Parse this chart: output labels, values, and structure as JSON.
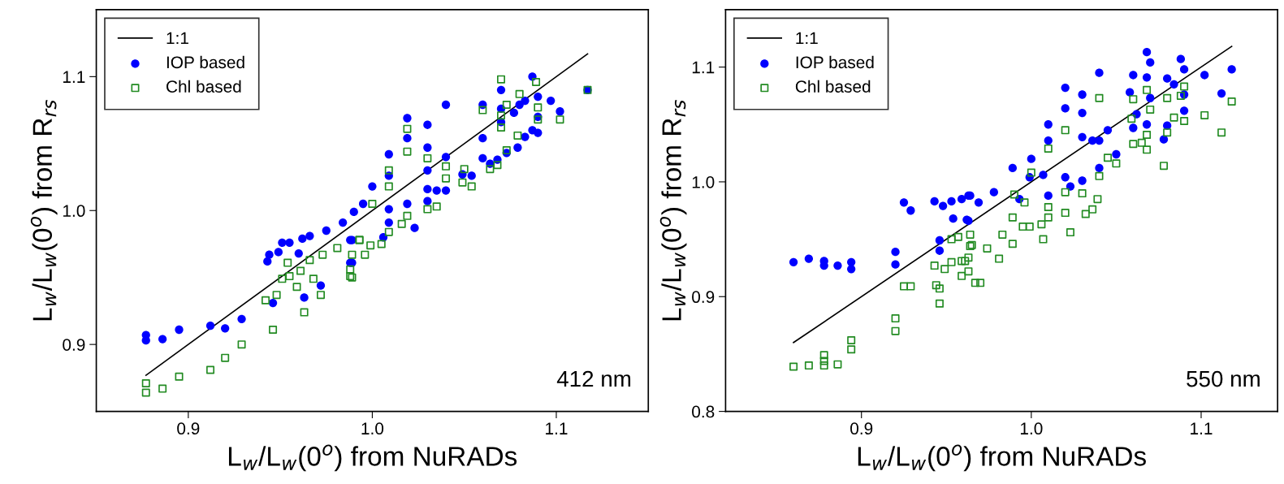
{
  "chart_data": [
    {
      "type": "scatter",
      "xlabel": "L$_{w}$/L$_{w}$(0$^{o}$) from NuRADs",
      "ylabel": "L$_{w}$/L$_{w}$(0$^{o}$) from R$_{rs}$",
      "annotations": [
        "412 nm"
      ],
      "xlim": [
        0.85,
        1.15
      ],
      "ylim": [
        0.85,
        1.15
      ],
      "xticks": [
        {
          "value": 0.9,
          "label": "0.9"
        },
        {
          "value": 1,
          "label": "1.0"
        },
        {
          "value": 1.1,
          "label": "1.1"
        }
      ],
      "yticks": [
        {
          "value": 0.9,
          "label": "0.9"
        },
        {
          "value": 1,
          "label": "1.0"
        },
        {
          "value": 1.1,
          "label": "1.1"
        }
      ],
      "grid": false,
      "legend": "top left",
      "series": [
        {
          "name": "1:1",
          "type": "line",
          "color": "#000000",
          "marker": "none",
          "x": [
            0.877,
            1.117
          ],
          "values": [
            0.877,
            1.117
          ]
        },
        {
          "name": "IOP based",
          "color": "#0000ff",
          "marker": "circle",
          "x": [
            0.877,
            0.877,
            0.886,
            0.895,
            0.912,
            0.92,
            0.929,
            0.943,
            0.944,
            0.949,
            0.951,
            0.955,
            0.96,
            0.962,
            0.966,
            0.975,
            0.984,
            0.99,
            0.988,
            0.989,
            0.963,
            0.972,
            0.946,
            0.989,
            0.988,
            1.0,
            0.995,
            1.009,
            1.009,
            1.009,
            1.009,
            1.006,
            1.019,
            1.019,
            1.019,
            1.023,
            1.03,
            1.03,
            1.03,
            1.03,
            1.03,
            1.035,
            1.04,
            1.04,
            1.04,
            1.049,
            1.054,
            1.06,
            1.06,
            1.06,
            1.064,
            1.068,
            1.07,
            1.07,
            1.07,
            1.073,
            1.077,
            1.079,
            1.08,
            1.083,
            1.083,
            1.087,
            1.087,
            1.09,
            1.09,
            1.09,
            1.097,
            1.102,
            1.117
          ],
          "values": [
            0.907,
            0.903,
            0.904,
            0.911,
            0.914,
            0.912,
            0.919,
            0.962,
            0.967,
            0.969,
            0.976,
            0.976,
            0.968,
            0.979,
            0.981,
            0.985,
            0.991,
            0.999,
            0.978,
            0.961,
            0.935,
            0.944,
            0.931,
            0.978,
            0.961,
            1.018,
            1.005,
            1.042,
            1.026,
            1.001,
            0.991,
            0.98,
            1.069,
            1.054,
            1.005,
            0.987,
            1.064,
            1.047,
            1.03,
            1.016,
            1.007,
            1.015,
            1.04,
            1.015,
            1.079,
            1.027,
            1.026,
            1.079,
            1.054,
            1.039,
            1.035,
            1.038,
            1.09,
            1.076,
            1.066,
            1.043,
            1.073,
            1.047,
            1.079,
            1.055,
            1.082,
            1.1,
            1.06,
            1.085,
            1.07,
            1.058,
            1.082,
            1.074,
            1.09
          ]
        },
        {
          "name": "Chl based",
          "color": "#228b22",
          "marker": "square",
          "x": [
            0.877,
            0.877,
            0.886,
            0.895,
            0.912,
            0.92,
            0.929,
            0.946,
            0.942,
            0.948,
            0.951,
            0.955,
            0.954,
            0.959,
            0.963,
            0.961,
            0.968,
            0.972,
            0.966,
            0.973,
            0.981,
            0.988,
            0.989,
            0.993,
            0.988,
            0.989,
            0.996,
            0.999,
            0.993,
            1.0,
            1.005,
            1.009,
            1.009,
            1.009,
            1.016,
            1.019,
            1.019,
            1.019,
            1.03,
            1.03,
            1.035,
            1.04,
            1.04,
            1.049,
            1.05,
            1.054,
            1.06,
            1.064,
            1.068,
            1.07,
            1.07,
            1.07,
            1.073,
            1.073,
            1.079,
            1.08,
            1.089,
            1.09,
            1.09,
            1.102,
            1.117
          ],
          "values": [
            0.871,
            0.864,
            0.867,
            0.876,
            0.881,
            0.89,
            0.9,
            0.911,
            0.933,
            0.937,
            0.949,
            0.951,
            0.961,
            0.943,
            0.924,
            0.955,
            0.949,
            0.937,
            0.963,
            0.967,
            0.972,
            0.956,
            0.95,
            0.978,
            0.951,
            0.967,
            0.967,
            0.974,
            0.978,
            1.005,
            0.975,
            0.984,
            1.018,
            1.03,
            0.99,
            1.061,
            1.044,
            0.996,
            1.001,
            1.039,
            1.003,
            1.033,
            1.024,
            1.021,
            1.031,
            1.018,
            1.075,
            1.031,
            1.034,
            1.098,
            1.062,
            1.071,
            1.079,
            1.045,
            1.056,
            1.087,
            1.096,
            1.077,
            1.068,
            1.068,
            1.09
          ]
        }
      ]
    },
    {
      "type": "scatter",
      "xlabel": "L$_{w}$/L$_{w}$(0$^{o}$) from NuRADs",
      "ylabel": "L$_{w}$/L$_{w}$(0$^{o}$) from R$_{rs}$",
      "annotations": [
        "550 nm"
      ],
      "xlim": [
        0.82,
        1.145
      ],
      "ylim": [
        0.8,
        1.15
      ],
      "xticks": [
        {
          "value": 0.9,
          "label": "0.9"
        },
        {
          "value": 1,
          "label": "1.0"
        },
        {
          "value": 1.1,
          "label": "1.1"
        }
      ],
      "yticks": [
        {
          "value": 0.8,
          "label": "0.8"
        },
        {
          "value": 0.9,
          "label": "0.9"
        },
        {
          "value": 1,
          "label": "1.0"
        },
        {
          "value": 1.1,
          "label": "1.1"
        }
      ],
      "grid": false,
      "legend": "top left",
      "series": [
        {
          "name": "1:1",
          "type": "line",
          "color": "#000000",
          "marker": "none",
          "x": [
            0.86,
            1.118
          ],
          "values": [
            0.86,
            1.118
          ]
        },
        {
          "name": "IOP based",
          "color": "#0000ff",
          "marker": "circle",
          "x": [
            0.86,
            0.869,
            0.878,
            0.878,
            0.886,
            0.894,
            0.894,
            0.92,
            0.92,
            0.925,
            0.929,
            0.946,
            0.946,
            0.943,
            0.948,
            0.953,
            0.959,
            0.963,
            0.954,
            0.963,
            0.964,
            0.962,
            0.969,
            0.978,
            0.989,
            0.993,
            1.0,
            0.999,
            1.007,
            1.01,
            1.01,
            1.01,
            1.02,
            1.02,
            1.02,
            1.023,
            1.03,
            1.03,
            1.03,
            1.03,
            1.036,
            1.04,
            1.04,
            1.04,
            1.045,
            1.05,
            1.06,
            1.058,
            1.06,
            1.062,
            1.068,
            1.07,
            1.068,
            1.07,
            1.068,
            1.078,
            1.08,
            1.08,
            1.084,
            1.088,
            1.09,
            1.09,
            1.09,
            1.102,
            1.112,
            1.118
          ],
          "values": [
            0.93,
            0.933,
            0.931,
            0.927,
            0.927,
            0.93,
            0.924,
            0.939,
            0.928,
            0.982,
            0.975,
            0.949,
            0.94,
            0.983,
            0.979,
            0.983,
            0.985,
            0.988,
            0.968,
            0.966,
            0.988,
            0.967,
            0.982,
            0.991,
            1.012,
            0.985,
            1.02,
            1.004,
            1.006,
            1.05,
            1.036,
            0.988,
            1.082,
            1.064,
            1.004,
            0.996,
            1.076,
            1.06,
            1.039,
            1.001,
            1.036,
            1.095,
            1.036,
            1.012,
            1.045,
            1.024,
            1.093,
            1.078,
            1.047,
            1.059,
            1.113,
            1.104,
            1.091,
            1.073,
            1.05,
            1.037,
            1.049,
            1.09,
            1.085,
            1.107,
            1.098,
            1.076,
            1.062,
            1.093,
            1.077,
            1.098
          ]
        },
        {
          "name": "Chl based",
          "color": "#228b22",
          "marker": "square",
          "x": [
            0.86,
            0.869,
            0.878,
            0.878,
            0.878,
            0.886,
            0.894,
            0.894,
            0.92,
            0.92,
            0.925,
            0.929,
            0.943,
            0.944,
            0.946,
            0.946,
            0.949,
            0.953,
            0.959,
            0.959,
            0.963,
            0.963,
            0.953,
            0.957,
            0.964,
            0.964,
            0.967,
            0.961,
            0.965,
            0.97,
            0.974,
            0.981,
            0.983,
            0.989,
            0.989,
            0.995,
            0.999,
            0.996,
            0.99,
            1.0,
            1.006,
            1.007,
            1.01,
            1.01,
            1.01,
            1.02,
            1.02,
            1.02,
            1.023,
            1.03,
            1.032,
            1.036,
            1.039,
            1.04,
            1.04,
            1.045,
            1.05,
            1.059,
            1.06,
            1.06,
            1.065,
            1.068,
            1.068,
            1.068,
            1.07,
            1.078,
            1.08,
            1.084,
            1.08,
            1.09,
            1.09,
            1.088,
            1.102,
            1.112,
            1.118
          ],
          "values": [
            0.839,
            0.84,
            0.849,
            0.844,
            0.84,
            0.841,
            0.862,
            0.854,
            0.881,
            0.87,
            0.909,
            0.909,
            0.927,
            0.91,
            0.907,
            0.894,
            0.924,
            0.93,
            0.931,
            0.918,
            0.934,
            0.922,
            0.95,
            0.952,
            0.944,
            0.954,
            0.912,
            0.931,
            0.945,
            0.912,
            0.942,
            0.933,
            0.954,
            0.946,
            0.969,
            0.961,
            0.961,
            0.982,
            0.989,
            1.008,
            0.963,
            0.95,
            0.978,
            0.969,
            1.029,
            1.045,
            0.991,
            0.973,
            0.956,
            0.99,
            0.972,
            0.976,
            0.985,
            1.073,
            1.005,
            1.021,
            1.016,
            1.055,
            1.033,
            1.072,
            1.034,
            1.028,
            1.041,
            1.08,
            1.063,
            1.014,
            1.073,
            1.056,
            1.043,
            1.083,
            1.053,
            1.075,
            1.058,
            1.043,
            1.07
          ]
        }
      ]
    }
  ]
}
